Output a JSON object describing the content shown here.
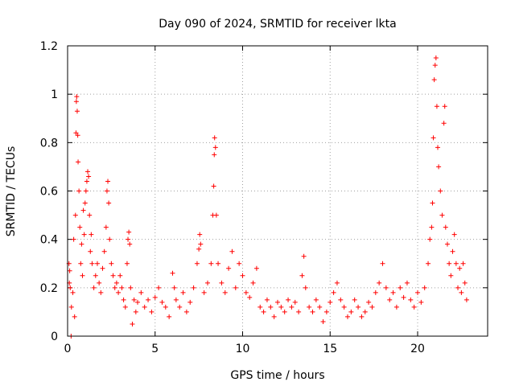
{
  "chart_data": {
    "type": "scatter",
    "title": "Day 090 of 2024, SRMTID for receiver lkta",
    "xlabel": "GPS time / hours",
    "ylabel": "SRMTID / TECUs",
    "xlim": [
      0,
      24
    ],
    "ylim": [
      0,
      1.2
    ],
    "grid": true,
    "marker": "plus",
    "color": "#ff0000",
    "xticks": [
      0,
      5,
      10,
      15,
      20
    ],
    "xtick_labels": [
      "0",
      "5",
      "10",
      "15",
      "20"
    ],
    "yticks": [
      0,
      0.2,
      0.4,
      0.6,
      0.8,
      1,
      1.2
    ],
    "ytick_labels": [
      "0",
      "0.2",
      "0.4",
      "0.6",
      "0.8",
      "1",
      "1.2"
    ],
    "series": [
      {
        "name": "SRMTID",
        "points": [
          [
            0.08,
            0.3
          ],
          [
            0.1,
            0.22
          ],
          [
            0.12,
            0.27
          ],
          [
            0.15,
            0.2
          ],
          [
            0.2,
            0.0
          ],
          [
            0.22,
            0.12
          ],
          [
            0.3,
            0.18
          ],
          [
            0.35,
            0.4
          ],
          [
            0.4,
            0.08
          ],
          [
            0.45,
            0.5
          ],
          [
            0.48,
            0.84
          ],
          [
            0.5,
            0.97
          ],
          [
            0.52,
            0.99
          ],
          [
            0.55,
            0.93
          ],
          [
            0.58,
            0.83
          ],
          [
            0.6,
            0.72
          ],
          [
            0.65,
            0.6
          ],
          [
            0.7,
            0.45
          ],
          [
            0.75,
            0.3
          ],
          [
            0.8,
            0.38
          ],
          [
            0.85,
            0.25
          ],
          [
            0.9,
            0.52
          ],
          [
            0.95,
            0.42
          ],
          [
            1.0,
            0.55
          ],
          [
            1.05,
            0.6
          ],
          [
            1.1,
            0.64
          ],
          [
            1.15,
            0.68
          ],
          [
            1.2,
            0.66
          ],
          [
            1.25,
            0.5
          ],
          [
            1.3,
            0.35
          ],
          [
            1.35,
            0.42
          ],
          [
            1.4,
            0.3
          ],
          [
            1.5,
            0.2
          ],
          [
            1.6,
            0.25
          ],
          [
            1.7,
            0.3
          ],
          [
            1.8,
            0.22
          ],
          [
            1.9,
            0.18
          ],
          [
            2.0,
            0.28
          ],
          [
            2.1,
            0.35
          ],
          [
            2.2,
            0.45
          ],
          [
            2.25,
            0.6
          ],
          [
            2.3,
            0.64
          ],
          [
            2.35,
            0.55
          ],
          [
            2.4,
            0.4
          ],
          [
            2.5,
            0.3
          ],
          [
            2.6,
            0.25
          ],
          [
            2.7,
            0.2
          ],
          [
            2.8,
            0.22
          ],
          [
            2.9,
            0.18
          ],
          [
            3.0,
            0.25
          ],
          [
            3.1,
            0.2
          ],
          [
            3.2,
            0.15
          ],
          [
            3.3,
            0.12
          ],
          [
            3.4,
            0.3
          ],
          [
            3.45,
            0.4
          ],
          [
            3.5,
            0.43
          ],
          [
            3.55,
            0.38
          ],
          [
            3.6,
            0.2
          ],
          [
            3.7,
            0.05
          ],
          [
            3.8,
            0.15
          ],
          [
            3.9,
            0.1
          ],
          [
            4.0,
            0.14
          ],
          [
            4.2,
            0.18
          ],
          [
            4.4,
            0.12
          ],
          [
            4.6,
            0.15
          ],
          [
            4.8,
            0.1
          ],
          [
            5.0,
            0.16
          ],
          [
            5.2,
            0.2
          ],
          [
            5.4,
            0.14
          ],
          [
            5.6,
            0.12
          ],
          [
            5.8,
            0.08
          ],
          [
            6.0,
            0.26
          ],
          [
            6.1,
            0.2
          ],
          [
            6.2,
            0.15
          ],
          [
            6.4,
            0.12
          ],
          [
            6.6,
            0.18
          ],
          [
            6.8,
            0.1
          ],
          [
            7.0,
            0.14
          ],
          [
            7.2,
            0.2
          ],
          [
            7.4,
            0.3
          ],
          [
            7.5,
            0.36
          ],
          [
            7.55,
            0.42
          ],
          [
            7.6,
            0.38
          ],
          [
            7.8,
            0.18
          ],
          [
            8.0,
            0.22
          ],
          [
            8.2,
            0.3
          ],
          [
            8.3,
            0.5
          ],
          [
            8.35,
            0.62
          ],
          [
            8.38,
            0.75
          ],
          [
            8.4,
            0.82
          ],
          [
            8.45,
            0.78
          ],
          [
            8.5,
            0.5
          ],
          [
            8.6,
            0.3
          ],
          [
            8.8,
            0.22
          ],
          [
            9.0,
            0.18
          ],
          [
            9.2,
            0.28
          ],
          [
            9.4,
            0.35
          ],
          [
            9.6,
            0.2
          ],
          [
            9.8,
            0.3
          ],
          [
            10.0,
            0.25
          ],
          [
            10.2,
            0.18
          ],
          [
            10.4,
            0.16
          ],
          [
            10.6,
            0.22
          ],
          [
            10.8,
            0.28
          ],
          [
            11.0,
            0.12
          ],
          [
            11.2,
            0.1
          ],
          [
            11.4,
            0.15
          ],
          [
            11.6,
            0.12
          ],
          [
            11.8,
            0.08
          ],
          [
            12.0,
            0.14
          ],
          [
            12.2,
            0.12
          ],
          [
            12.4,
            0.1
          ],
          [
            12.6,
            0.15
          ],
          [
            12.8,
            0.12
          ],
          [
            13.0,
            0.14
          ],
          [
            13.2,
            0.1
          ],
          [
            13.4,
            0.25
          ],
          [
            13.5,
            0.33
          ],
          [
            13.6,
            0.2
          ],
          [
            13.8,
            0.12
          ],
          [
            14.0,
            0.1
          ],
          [
            14.2,
            0.15
          ],
          [
            14.4,
            0.12
          ],
          [
            14.6,
            0.06
          ],
          [
            14.8,
            0.1
          ],
          [
            15.0,
            0.14
          ],
          [
            15.2,
            0.18
          ],
          [
            15.4,
            0.22
          ],
          [
            15.6,
            0.15
          ],
          [
            15.8,
            0.12
          ],
          [
            16.0,
            0.08
          ],
          [
            16.2,
            0.1
          ],
          [
            16.4,
            0.15
          ],
          [
            16.6,
            0.12
          ],
          [
            16.8,
            0.08
          ],
          [
            17.0,
            0.1
          ],
          [
            17.2,
            0.14
          ],
          [
            17.4,
            0.12
          ],
          [
            17.6,
            0.18
          ],
          [
            17.8,
            0.22
          ],
          [
            18.0,
            0.3
          ],
          [
            18.2,
            0.2
          ],
          [
            18.4,
            0.15
          ],
          [
            18.6,
            0.18
          ],
          [
            18.8,
            0.12
          ],
          [
            19.0,
            0.2
          ],
          [
            19.2,
            0.16
          ],
          [
            19.4,
            0.22
          ],
          [
            19.6,
            0.15
          ],
          [
            19.8,
            0.12
          ],
          [
            20.0,
            0.18
          ],
          [
            20.2,
            0.14
          ],
          [
            20.4,
            0.2
          ],
          [
            20.6,
            0.3
          ],
          [
            20.7,
            0.4
          ],
          [
            20.8,
            0.45
          ],
          [
            20.85,
            0.55
          ],
          [
            20.9,
            0.82
          ],
          [
            20.95,
            1.06
          ],
          [
            21.0,
            1.12
          ],
          [
            21.05,
            1.15
          ],
          [
            21.1,
            0.95
          ],
          [
            21.15,
            0.78
          ],
          [
            21.2,
            0.7
          ],
          [
            21.3,
            0.6
          ],
          [
            21.4,
            0.5
          ],
          [
            21.5,
            0.88
          ],
          [
            21.55,
            0.95
          ],
          [
            21.6,
            0.45
          ],
          [
            21.7,
            0.38
          ],
          [
            21.8,
            0.3
          ],
          [
            21.9,
            0.25
          ],
          [
            22.0,
            0.35
          ],
          [
            22.1,
            0.42
          ],
          [
            22.2,
            0.3
          ],
          [
            22.3,
            0.2
          ],
          [
            22.4,
            0.28
          ],
          [
            22.5,
            0.18
          ],
          [
            22.6,
            0.3
          ],
          [
            22.7,
            0.22
          ],
          [
            22.8,
            0.15
          ]
        ]
      }
    ]
  }
}
